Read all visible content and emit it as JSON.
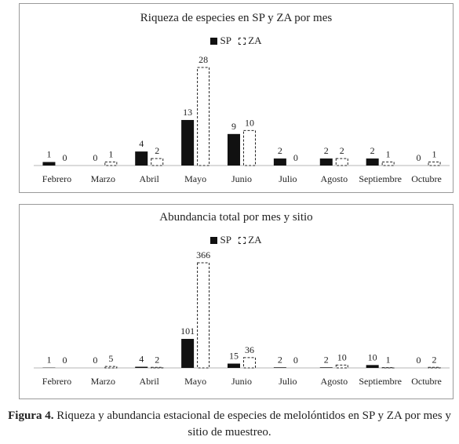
{
  "charts": [
    {
      "title": "Riqueza de especies en SP y ZA por mes",
      "legend": [
        "SP",
        "ZA"
      ]
    },
    {
      "title": "Abundancia total por mes y sitio",
      "legend": [
        "SP",
        "ZA"
      ]
    }
  ],
  "caption": {
    "label": "Figura 4.",
    "text": "Riqueza y abundancia estacional de especies de melolóntidos en SP y ZA por mes y sitio de muestreo."
  },
  "colors": {
    "sp": "#111111",
    "za_border": "#222222",
    "frame": "#9a9a9a"
  },
  "chart_data": [
    {
      "type": "bar",
      "title": "Riqueza de especies en SP y ZA por mes",
      "xlabel": "",
      "ylabel": "",
      "categories": [
        "Febrero",
        "Marzo",
        "Abril",
        "Mayo",
        "Junio",
        "Julio",
        "Agosto",
        "Septiembre",
        "Octubre"
      ],
      "series": [
        {
          "name": "SP",
          "values": [
            1,
            0,
            4,
            13,
            9,
            2,
            2,
            2,
            0
          ]
        },
        {
          "name": "ZA",
          "values": [
            0,
            1,
            2,
            28,
            10,
            0,
            2,
            1,
            1
          ]
        }
      ],
      "ylim": [
        0,
        28
      ],
      "grid": false,
      "legend_position": "top-center"
    },
    {
      "type": "bar",
      "title": "Abundancia total por mes y sitio",
      "xlabel": "",
      "ylabel": "",
      "categories": [
        "Febrero",
        "Marzo",
        "Abril",
        "Mayo",
        "Junio",
        "Julio",
        "Agosto",
        "Septiembre",
        "Octubre"
      ],
      "series": [
        {
          "name": "SP",
          "values": [
            1,
            0,
            4,
            101,
            15,
            2,
            2,
            10,
            0
          ]
        },
        {
          "name": "ZA",
          "values": [
            0,
            5,
            2,
            366,
            36,
            0,
            10,
            1,
            2
          ]
        }
      ],
      "ylim": [
        0,
        366
      ],
      "grid": false,
      "legend_position": "top-center"
    }
  ]
}
